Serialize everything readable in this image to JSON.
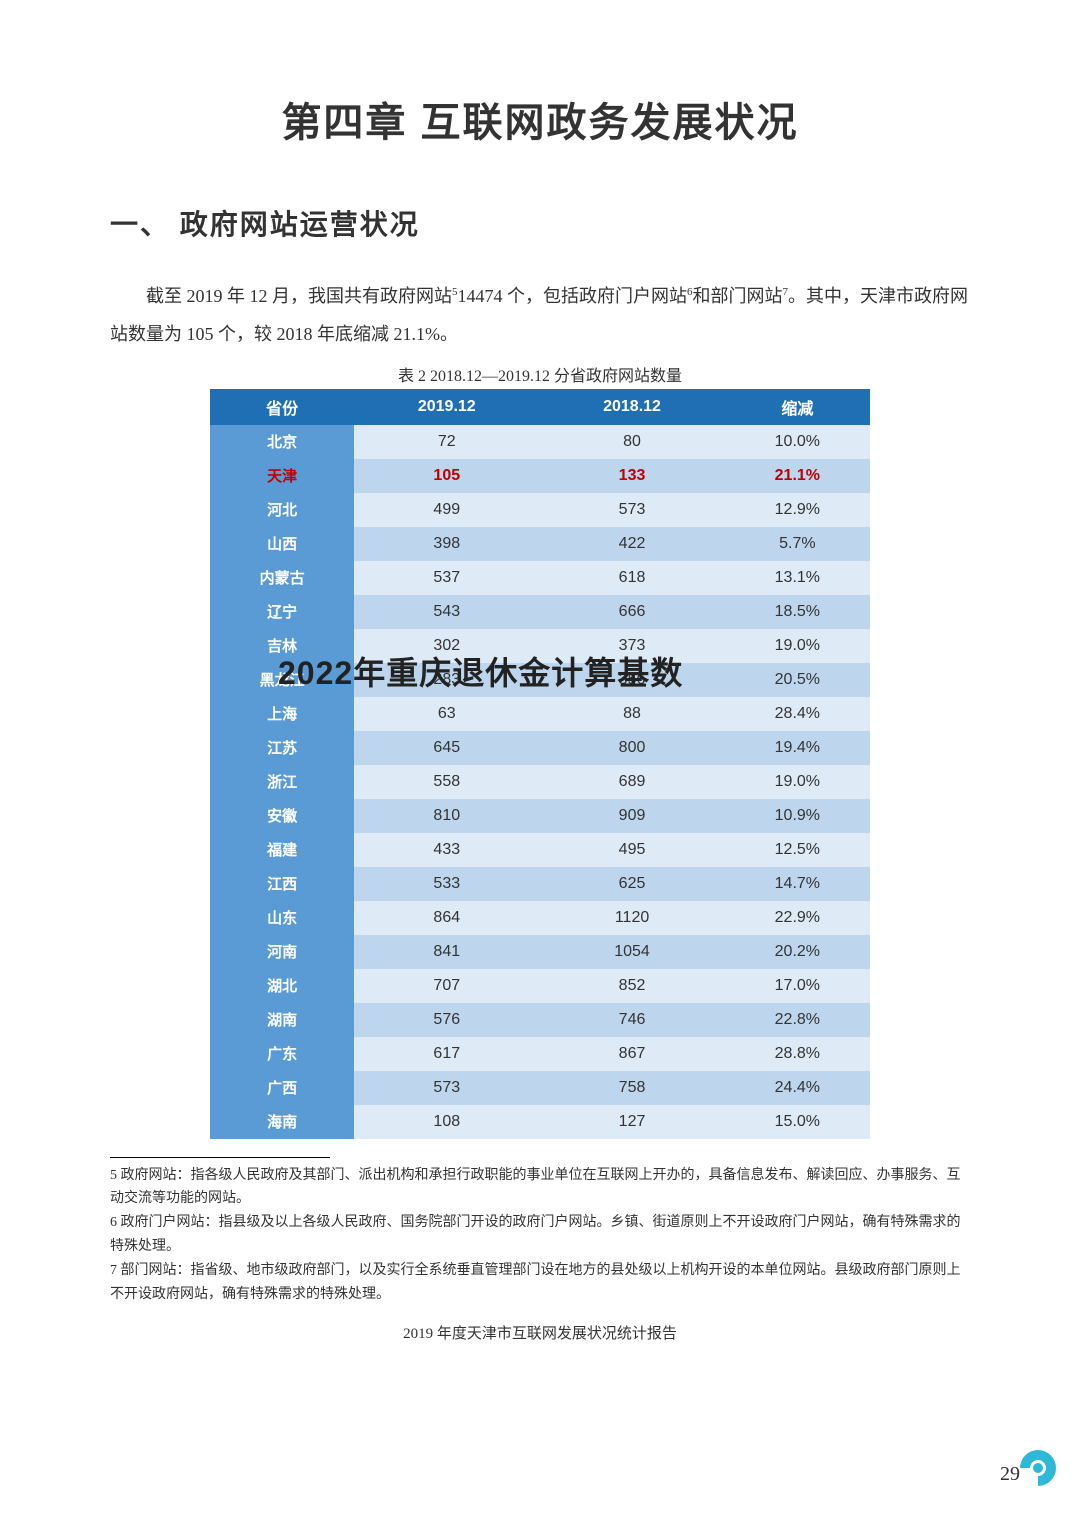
{
  "chapterTitle": "第四章  互联网政务发展状况",
  "sectionTitle": "一、 政府网站运营状况",
  "paragraph1": "截至 2019 年 12 月，我国共有政府网站",
  "paragraph1_sup1": "5",
  "paragraph1_mid": "14474 个，包括政府门户网站",
  "paragraph1_sup2": "6",
  "paragraph1_mid2": "和部门网站",
  "paragraph1_sup3": "7",
  "paragraph1_end": "。其中，天津市政府网站数量为 105 个，较 2018 年底缩减 21.1%。",
  "tableCaption": "表 2 2018.12—2019.12 分省政府网站数量",
  "watermark": "2022年重庆退休金计算基数",
  "watermarkTop": "648px",
  "watermarkLeft": "278px",
  "table": {
    "headerBg": "#1f6fb5",
    "labelBg": "#5a9bd5",
    "oddBg": "#deeaf6",
    "evenBg": "#bdd6ee",
    "highlightColor": "#c00000",
    "columns": [
      "省份",
      "2019.12",
      "2018.12",
      "缩减"
    ],
    "highlightRow": 1,
    "rows": [
      [
        "北京",
        "72",
        "80",
        "10.0%"
      ],
      [
        "天津",
        "105",
        "133",
        "21.1%"
      ],
      [
        "河北",
        "499",
        "573",
        "12.9%"
      ],
      [
        "山西",
        "398",
        "422",
        "5.7%"
      ],
      [
        "内蒙古",
        "537",
        "618",
        "13.1%"
      ],
      [
        "辽宁",
        "543",
        "666",
        "18.5%"
      ],
      [
        "吉林",
        "302",
        "373",
        "19.0%"
      ],
      [
        "黑龙江",
        "283",
        "356",
        "20.5%"
      ],
      [
        "上海",
        "63",
        "88",
        "28.4%"
      ],
      [
        "江苏",
        "645",
        "800",
        "19.4%"
      ],
      [
        "浙江",
        "558",
        "689",
        "19.0%"
      ],
      [
        "安徽",
        "810",
        "909",
        "10.9%"
      ],
      [
        "福建",
        "433",
        "495",
        "12.5%"
      ],
      [
        "江西",
        "533",
        "625",
        "14.7%"
      ],
      [
        "山东",
        "864",
        "1120",
        "22.9%"
      ],
      [
        "河南",
        "841",
        "1054",
        "20.2%"
      ],
      [
        "湖北",
        "707",
        "852",
        "17.0%"
      ],
      [
        "湖南",
        "576",
        "746",
        "22.8%"
      ],
      [
        "广东",
        "617",
        "867",
        "28.8%"
      ],
      [
        "广西",
        "573",
        "758",
        "24.4%"
      ],
      [
        "海南",
        "108",
        "127",
        "15.0%"
      ]
    ]
  },
  "footnotes": [
    "5 政府网站：指各级人民政府及其部门、派出机构和承担行政职能的事业单位在互联网上开办的，具备信息发布、解读回应、办事服务、互动交流等功能的网站。",
    "6 政府门户网站：指县级及以上各级人民政府、国务院部门开设的政府门户网站。乡镇、街道原则上不开设政府门户网站，确有特殊需求的特殊处理。",
    "7 部门网站：指省级、地市级政府部门，以及实行全系统垂直管理部门设在地方的县处级以上机构开设的本单位网站。县级政府部门原则上不开设政府网站，确有特殊需求的特殊处理。"
  ],
  "footerTitle": "2019 年度天津市互联网发展状况统计报告",
  "pageNumber": "29",
  "logoColors": {
    "outer": "#2eb8d8",
    "inner": "#ffffff"
  }
}
